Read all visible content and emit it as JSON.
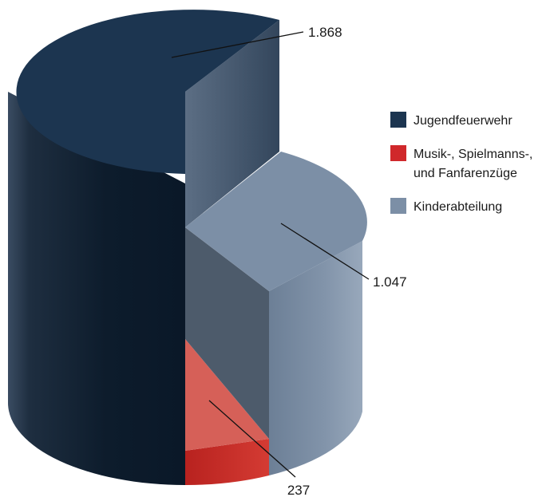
{
  "chart_data": {
    "type": "pie",
    "categories": [
      "Jugendfeuerwehr",
      "Musik-, Spielmanns-, und Fanfarenzüge",
      "Kinderabteilung"
    ],
    "values": [
      1868,
      237,
      1047
    ],
    "value_labels": [
      "1.868",
      "237",
      "1.047"
    ],
    "legend": {
      "placement": "right",
      "entries": [
        {
          "lines": [
            "Jugendfeuerwehr"
          ],
          "color": "#1c3550"
        },
        {
          "lines": [
            "Musik-, Spielmanns-,",
            "und Fanfarenzüge"
          ],
          "color": "#d0282b"
        },
        {
          "lines": [
            "Kinderabteilung"
          ],
          "color": "#7c8fa6"
        }
      ]
    },
    "style": "3d-cylinder-exploded"
  }
}
